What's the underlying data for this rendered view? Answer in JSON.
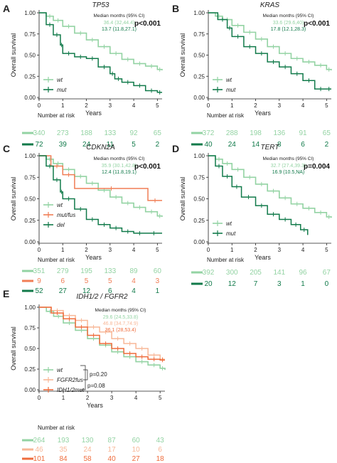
{
  "colors": {
    "wt": "#93d3a3",
    "mut": "#117a4a",
    "del": "#117a4a",
    "mutfus": "#f07d55",
    "fgfr2": "#f8b797",
    "idh": "#ef6c3c",
    "axis": "#222222",
    "pval": "#111111"
  },
  "chart_data": [
    {
      "type": "line",
      "panel_letter": "A",
      "title": "TP53",
      "ylabel": "Overall survival",
      "xlabel": "Years",
      "ylim": [
        0,
        1
      ],
      "xlim": [
        0,
        5.2
      ],
      "yticks": [
        "0.00",
        "0.25",
        "0.50",
        "0.75",
        "1.00"
      ],
      "xticks": [
        "0",
        "1",
        "2",
        "3",
        "4",
        "5"
      ],
      "median_header": "Median months (95% CI)",
      "pvalue": "p<0.001",
      "risk_header": "Number at risk",
      "series": [
        {
          "name": "wt",
          "color": "#93d3a3",
          "median": "36.4 (32,44.4)",
          "risk": [
            "340",
            "273",
            "188",
            "133",
            "92",
            "65"
          ],
          "x": [
            0,
            0.3,
            0.6,
            1.0,
            1.5,
            2.0,
            2.5,
            3.0,
            3.5,
            4.0,
            4.5,
            5.0,
            5.2
          ],
          "y": [
            1.0,
            0.96,
            0.91,
            0.84,
            0.76,
            0.68,
            0.6,
            0.52,
            0.45,
            0.4,
            0.37,
            0.33,
            0.32
          ]
        },
        {
          "name": "mut",
          "color": "#117a4a",
          "median": "13.7 (11.8,27.1)",
          "risk": [
            "72",
            "39",
            "24",
            "11",
            "5",
            "2"
          ],
          "x": [
            0,
            0.3,
            0.6,
            0.9,
            1.0,
            1.5,
            2.0,
            2.5,
            3.0,
            3.2,
            3.5,
            4.0,
            4.5,
            5.0,
            5.2
          ],
          "y": [
            1.0,
            0.86,
            0.74,
            0.62,
            0.52,
            0.48,
            0.46,
            0.36,
            0.28,
            0.22,
            0.18,
            0.14,
            0.08,
            0.06,
            0.06
          ]
        }
      ]
    },
    {
      "type": "line",
      "panel_letter": "B",
      "title": "KRAS",
      "ylabel": "Overall survival",
      "xlabel": "Years",
      "ylim": [
        0,
        1
      ],
      "xlim": [
        0,
        5.2
      ],
      "yticks": [
        "0.00",
        "0.25",
        "0.50",
        "0.75",
        "1.00"
      ],
      "xticks": [
        "0",
        "1",
        "2",
        "3",
        "4",
        "5"
      ],
      "median_header": "Median months (95% CI)",
      "pvalue": "p<0.001",
      "risk_header": "Number at risk",
      "series": [
        {
          "name": "wt",
          "color": "#93d3a3",
          "median": "33.6 (29.6,40)",
          "risk": [
            "372",
            "288",
            "198",
            "136",
            "91",
            "65"
          ],
          "x": [
            0,
            0.3,
            0.6,
            1.0,
            1.5,
            2.0,
            2.5,
            3.0,
            3.5,
            4.0,
            4.5,
            5.0,
            5.2
          ],
          "y": [
            1.0,
            0.96,
            0.92,
            0.85,
            0.77,
            0.69,
            0.6,
            0.52,
            0.46,
            0.42,
            0.38,
            0.33,
            0.32
          ]
        },
        {
          "name": "mut",
          "color": "#117a4a",
          "median": "17.8 (12.1,28.3)",
          "risk": [
            "40",
            "24",
            "14",
            "8",
            "6",
            "2"
          ],
          "x": [
            0,
            0.4,
            0.8,
            1.0,
            1.5,
            2.0,
            2.5,
            3.0,
            3.5,
            4.0,
            4.5,
            5.0,
            5.2
          ],
          "y": [
            1.0,
            0.92,
            0.82,
            0.72,
            0.6,
            0.52,
            0.42,
            0.36,
            0.28,
            0.2,
            0.1,
            0.1,
            0.1
          ]
        }
      ]
    },
    {
      "type": "line",
      "panel_letter": "C",
      "title": "CDKN2A",
      "ylabel": "Overall survival",
      "xlabel": "Years",
      "ylim": [
        0,
        1
      ],
      "xlim": [
        0,
        5.2
      ],
      "yticks": [
        "0.00",
        "0.25",
        "0.50",
        "0.75",
        "1.00"
      ],
      "xticks": [
        "0",
        "1",
        "2",
        "3",
        "4",
        "5"
      ],
      "median_header": "Median months (95% CI)",
      "pvalue": "p<0.001",
      "risk_header": "Number at risk",
      "series": [
        {
          "name": "wt",
          "color": "#93d3a3",
          "median": "35.9 (30.1,42.8)",
          "risk": [
            "351",
            "279",
            "195",
            "133",
            "89",
            "60"
          ],
          "x": [
            0,
            0.3,
            0.6,
            1.0,
            1.5,
            2.0,
            2.5,
            3.0,
            3.5,
            4.0,
            4.5,
            5.0,
            5.2
          ],
          "y": [
            1.0,
            0.96,
            0.91,
            0.84,
            0.76,
            0.68,
            0.6,
            0.52,
            0.45,
            0.4,
            0.35,
            0.3,
            0.29
          ]
        },
        {
          "name": "mut/fus",
          "color": "#f07d55",
          "median": "",
          "risk": [
            "9",
            "6",
            "5",
            "5",
            "4",
            "3"
          ],
          "x": [
            0,
            0.5,
            1.0,
            1.5,
            4.6,
            5.2
          ],
          "y": [
            1.0,
            0.88,
            0.78,
            0.62,
            0.48,
            0.48
          ]
        },
        {
          "name": "del",
          "color": "#117a4a",
          "median": "12.4 (11.8,19.1)",
          "risk": [
            "52",
            "27",
            "12",
            "6",
            "4",
            "1"
          ],
          "x": [
            0,
            0.3,
            0.6,
            0.9,
            1.0,
            1.5,
            2.0,
            2.5,
            3.0,
            3.5,
            4.0,
            4.5,
            5.2
          ],
          "y": [
            1.0,
            0.88,
            0.72,
            0.58,
            0.5,
            0.38,
            0.26,
            0.2,
            0.16,
            0.12,
            0.1,
            0.1,
            0.1
          ]
        }
      ]
    },
    {
      "type": "line",
      "panel_letter": "D",
      "title": "TERT",
      "ylabel": "Overall survival",
      "xlabel": "Years",
      "ylim": [
        0,
        1
      ],
      "xlim": [
        0,
        5.2
      ],
      "yticks": [
        "0.00",
        "0.25",
        "0.50",
        "0.75",
        "1.00"
      ],
      "xticks": [
        "0",
        "1",
        "2",
        "3",
        "4",
        "5"
      ],
      "median_header": "Median months (95% CI)",
      "pvalue": "p=0.004",
      "risk_header": "Number at risk",
      "series": [
        {
          "name": "wt",
          "color": "#93d3a3",
          "median": "32.7 (27.4,39.3)",
          "risk": [
            "392",
            "300",
            "205",
            "141",
            "96",
            "67"
          ],
          "x": [
            0,
            0.3,
            0.6,
            1.0,
            1.5,
            2.0,
            2.5,
            3.0,
            3.5,
            4.0,
            4.5,
            5.0,
            5.2
          ],
          "y": [
            1.0,
            0.96,
            0.91,
            0.84,
            0.75,
            0.67,
            0.59,
            0.51,
            0.44,
            0.39,
            0.34,
            0.29,
            0.28
          ]
        },
        {
          "name": "mut",
          "color": "#117a4a",
          "median": "16.9 (10.5,NA)",
          "risk": [
            "20",
            "12",
            "7",
            "3",
            "1",
            "0"
          ],
          "x": [
            0,
            0.3,
            0.6,
            1.0,
            1.4,
            2.0,
            2.5,
            3.0,
            3.5,
            3.9,
            4.2
          ],
          "y": [
            1.0,
            0.88,
            0.76,
            0.64,
            0.52,
            0.42,
            0.32,
            0.26,
            0.2,
            0.14,
            0.08
          ]
        }
      ]
    },
    {
      "type": "line",
      "panel_letter": "E",
      "title": "IDH1/2 / FGFR2",
      "ylabel": "Overall survival",
      "xlabel": "Years",
      "ylim": [
        0,
        1
      ],
      "xlim": [
        0,
        5.2
      ],
      "yticks": [
        "0.00",
        "0.25",
        "0.50",
        "0.75",
        "1.00"
      ],
      "xticks": [
        "0",
        "1",
        "2",
        "3",
        "4",
        "5"
      ],
      "median_header": "Median months (95% CI)",
      "pvalue": "",
      "pvalue_a": "p=0.20",
      "pvalue_b": "p=0.08",
      "risk_header": "Number at risk",
      "series": [
        {
          "name": "wt",
          "color": "#93d3a3",
          "median": "29.6 (24.5,33.8)",
          "risk": [
            "264",
            "193",
            "130",
            "87",
            "60",
            "43"
          ],
          "x": [
            0,
            0.3,
            0.6,
            1.0,
            1.5,
            2.0,
            2.5,
            3.0,
            3.5,
            4.0,
            4.5,
            5.0,
            5.2
          ],
          "y": [
            1.0,
            0.95,
            0.89,
            0.81,
            0.72,
            0.62,
            0.54,
            0.46,
            0.4,
            0.34,
            0.3,
            0.26,
            0.24
          ]
        },
        {
          "name": "FGFR2fus",
          "color": "#f8b797",
          "median": "46.8 (34.7,74.9)",
          "risk": [
            "46",
            "35",
            "24",
            "17",
            "10",
            "6"
          ],
          "x": [
            0,
            0.5,
            1.0,
            1.5,
            2.0,
            2.5,
            3.0,
            3.5,
            4.0,
            4.5,
            5.0,
            5.2
          ],
          "y": [
            1.0,
            0.96,
            0.9,
            0.84,
            0.76,
            0.7,
            0.62,
            0.56,
            0.5,
            0.42,
            0.37,
            0.37
          ]
        },
        {
          "name": "IDH1/2mut",
          "color": "#ef6c3c",
          "median": "36.1 (28,53.4)",
          "risk": [
            "101",
            "84",
            "58",
            "40",
            "27",
            "18"
          ],
          "x": [
            0,
            0.5,
            1.0,
            1.5,
            2.0,
            2.5,
            3.0,
            3.5,
            4.0,
            4.5,
            5.0,
            5.2
          ],
          "y": [
            1.0,
            0.93,
            0.86,
            0.76,
            0.66,
            0.56,
            0.5,
            0.44,
            0.4,
            0.37,
            0.36,
            0.36
          ]
        }
      ]
    }
  ]
}
